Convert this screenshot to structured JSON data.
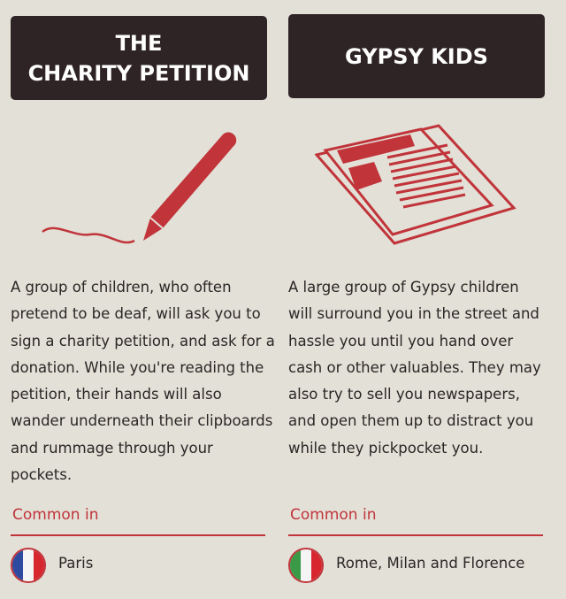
{
  "scams": [
    {
      "title_lines": [
        "THE",
        "CHARITY PETITION"
      ],
      "icon": "pencil-icon",
      "description": "A group of children, who often pretend to be deaf, will ask you to sign a charity petition, and ask for a donation. While you're reading the petition, their hands will also wander underneath their clipboards and rummage through your pockets.",
      "common_label": "Common in",
      "flag": {
        "name": "france-flag-icon",
        "colors": [
          "#2d4aa0",
          "#f4f4f4",
          "#d7262e"
        ]
      },
      "locations": "Paris"
    },
    {
      "title_lines": [
        "GYPSY KIDS"
      ],
      "icon": "newspaper-icon",
      "description": "A large group of Gypsy children will surround you in the street and hassle you until you hand over cash or other valuables. They may also try to sell you newspapers, and open them up to distract you while they pickpocket you.",
      "common_label": "Common in",
      "flag": {
        "name": "italy-flag-icon",
        "colors": [
          "#3a9a48",
          "#f4f4f4",
          "#d7262e"
        ]
      },
      "locations": "Rome, Milan and Florence"
    }
  ],
  "colors": {
    "header_bg": "#2f2425",
    "accent": "#c0343a",
    "background": "#e3e0d7"
  }
}
